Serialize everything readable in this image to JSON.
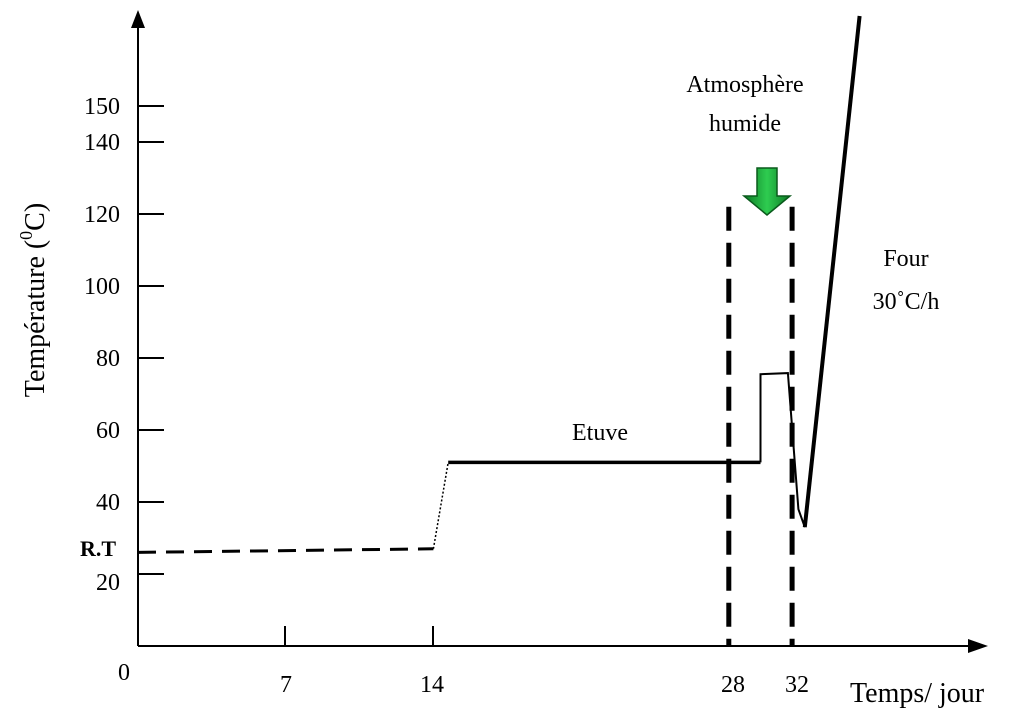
{
  "chart_data": {
    "type": "line",
    "title": "",
    "xlabel": "Temps/ jour",
    "ylabel": "Température (0C)",
    "ylabel_parts": [
      "Température (",
      "0",
      "C)"
    ],
    "x_ticks": [
      "7",
      "14",
      "28",
      "32"
    ],
    "origin_label": "0",
    "y_ticks": [
      "20",
      "40",
      "60",
      "80",
      "100",
      "120",
      "140",
      "150"
    ],
    "rt_label": "R.T",
    "xlim": [
      0,
      40
    ],
    "ylim": [
      0,
      160
    ],
    "series": [
      {
        "style": "dashed",
        "points": [
          [
            0,
            26
          ],
          [
            14,
            27
          ]
        ]
      },
      {
        "style": "dotted-thin",
        "points": [
          [
            14,
            27
          ],
          [
            14.7,
            51
          ]
        ]
      },
      {
        "style": "solid",
        "points": [
          [
            14.7,
            51
          ],
          [
            29.5,
            51
          ]
        ]
      },
      {
        "style": "solid-thin",
        "points": [
          [
            29.5,
            51
          ],
          [
            29.5,
            75.5
          ],
          [
            30.8,
            75.8
          ],
          [
            31.3,
            38
          ],
          [
            31.6,
            33
          ]
        ]
      },
      {
        "style": "solid-thick",
        "points": [
          [
            31.6,
            33
          ],
          [
            34.2,
            175
          ]
        ]
      }
    ],
    "vertical_dashed_lines": [
      {
        "x": 28,
        "y_range": [
          0,
          122
        ]
      },
      {
        "x": 31,
        "y_range": [
          0,
          122
        ]
      }
    ],
    "annotations": {
      "etuve": "Etuve",
      "atmosphere": [
        "Atmosphère",
        "humide"
      ],
      "four": [
        "Four",
        "30˚C/h"
      ]
    },
    "arrow_color": "#1aa33a"
  }
}
